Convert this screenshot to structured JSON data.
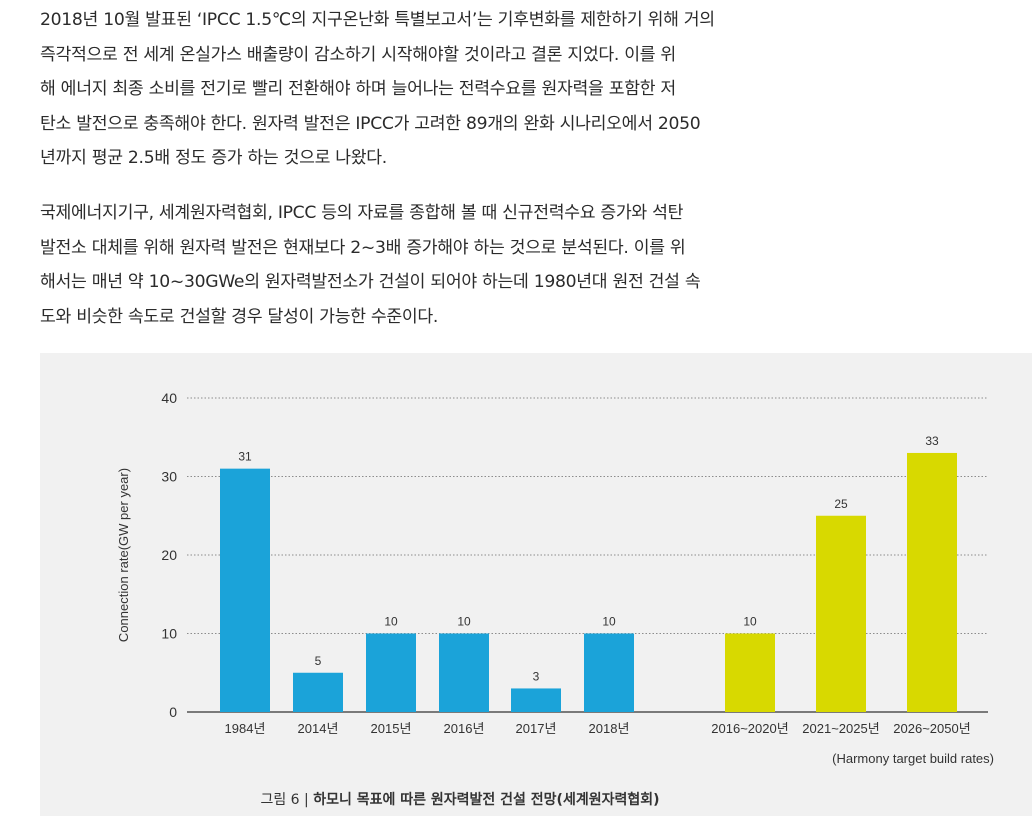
{
  "article": {
    "paragraphs": [
      {
        "lines": [
          "2018년 10월 발표된 ‘IPCC 1.5℃의 지구온난화 특별보고서’는 기후변화를 제한하기 위해 거의",
          "즉각적으로 전 세계 온실가스 배출량이 감소하기 시작해야할 것이라고 결론 지었다. 이를 위",
          "해 에너지 최종 소비를 전기로 빨리 전환해야 하며 늘어나는 전력수요를 원자력을 포함한 저",
          "탄소 발전으로 충족해야 한다. 원자력 발전은 IPCC가 고려한 89개의 완화 시나리오에서 2050",
          "년까지 평균 2.5배 정도 증가 하는 것으로 나왔다."
        ]
      },
      {
        "lines": [
          "국제에너지기구, 세계원자력협회, IPCC 등의 자료를 종합해 볼 때 신규전력수요 증가와 석탄",
          "발전소 대체를 위해 원자력 발전은 현재보다 2~3배 증가해야 하는 것으로 분석된다. 이를 위",
          "해서는 매년 약 10~30GWe의 원자력발전소가 건설이 되어야 하는데 1980년대 원전 건설 속",
          "도와 비슷한 속도로 건설할 경우 달성이 가능한 수준이다."
        ]
      }
    ]
  },
  "figure": {
    "note": "(Harmony target build rates)",
    "caption_prefix": "그림 6 | ",
    "caption_title": "하모니 목표에 따른 원자력발전 건설 전망(세계원자력협회)"
  },
  "chart_data": {
    "type": "bar",
    "ylabel": "Connection rate(GW per year)",
    "xlabel": "",
    "ylim": [
      0,
      40
    ],
    "yticks": [
      0,
      10,
      20,
      30,
      40
    ],
    "grid": true,
    "categories": [
      "1984년",
      "2014년",
      "2015년",
      "2016년",
      "2017년",
      "2018년",
      "2016~2020년",
      "2021~2025년",
      "2026~2050년"
    ],
    "values": [
      31,
      5,
      10,
      10,
      3,
      10,
      10,
      25,
      33
    ],
    "groups": [
      "actual",
      "actual",
      "actual",
      "actual",
      "actual",
      "actual",
      "target",
      "target",
      "target"
    ],
    "colors": {
      "actual": "#1ba3d9",
      "target": "#d8d900"
    }
  }
}
